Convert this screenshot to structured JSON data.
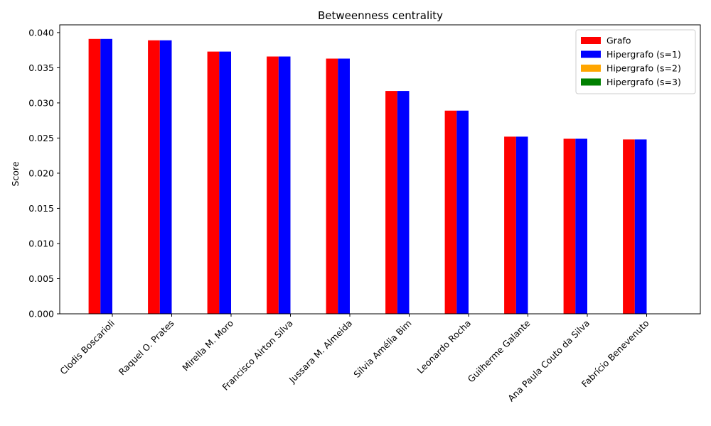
{
  "chart_data": {
    "type": "bar",
    "title": "Betweenness centrality",
    "xlabel": "",
    "ylabel": "Score",
    "ylim": [
      0,
      0.0411
    ],
    "yticks": [
      0.0,
      0.005,
      0.01,
      0.015,
      0.02,
      0.025,
      0.03,
      0.035,
      0.04
    ],
    "ytick_labels": [
      "0.000",
      "0.005",
      "0.010",
      "0.015",
      "0.020",
      "0.025",
      "0.030",
      "0.035",
      "0.040"
    ],
    "grid": false,
    "legend_position": "top-right",
    "categories": [
      "Clodis Boscarioli",
      "Raquel O. Prates",
      "Mirella M. Moro",
      "Francisco Airton Silva",
      "Jussara M. Almeida",
      "Sílvia Amélia Bim",
      "Leonardo Rocha",
      "Guilherme Galante",
      "Ana Paula Couto da Silva",
      "Fabrício Benevenuto"
    ],
    "series": [
      {
        "name": "Grafo",
        "color": "#ff0000",
        "values": [
          0.0391,
          0.0389,
          0.0373,
          0.0366,
          0.0363,
          0.0317,
          0.0289,
          0.0252,
          0.0249,
          0.0248
        ]
      },
      {
        "name": "Hipergrafo (s=1)",
        "color": "#0000ff",
        "values": [
          0.0391,
          0.0389,
          0.0373,
          0.0366,
          0.0363,
          0.0317,
          0.0289,
          0.0252,
          0.0249,
          0.0248
        ]
      },
      {
        "name": "Hipergrafo (s=2)",
        "color": "#ffa500",
        "values": [
          0,
          0,
          0,
          0,
          0,
          0,
          0,
          0,
          0,
          0
        ]
      },
      {
        "name": "Hipergrafo (s=3)",
        "color": "#008000",
        "values": [
          0,
          0,
          0,
          0,
          0,
          0,
          0,
          0,
          0,
          0
        ]
      }
    ]
  }
}
